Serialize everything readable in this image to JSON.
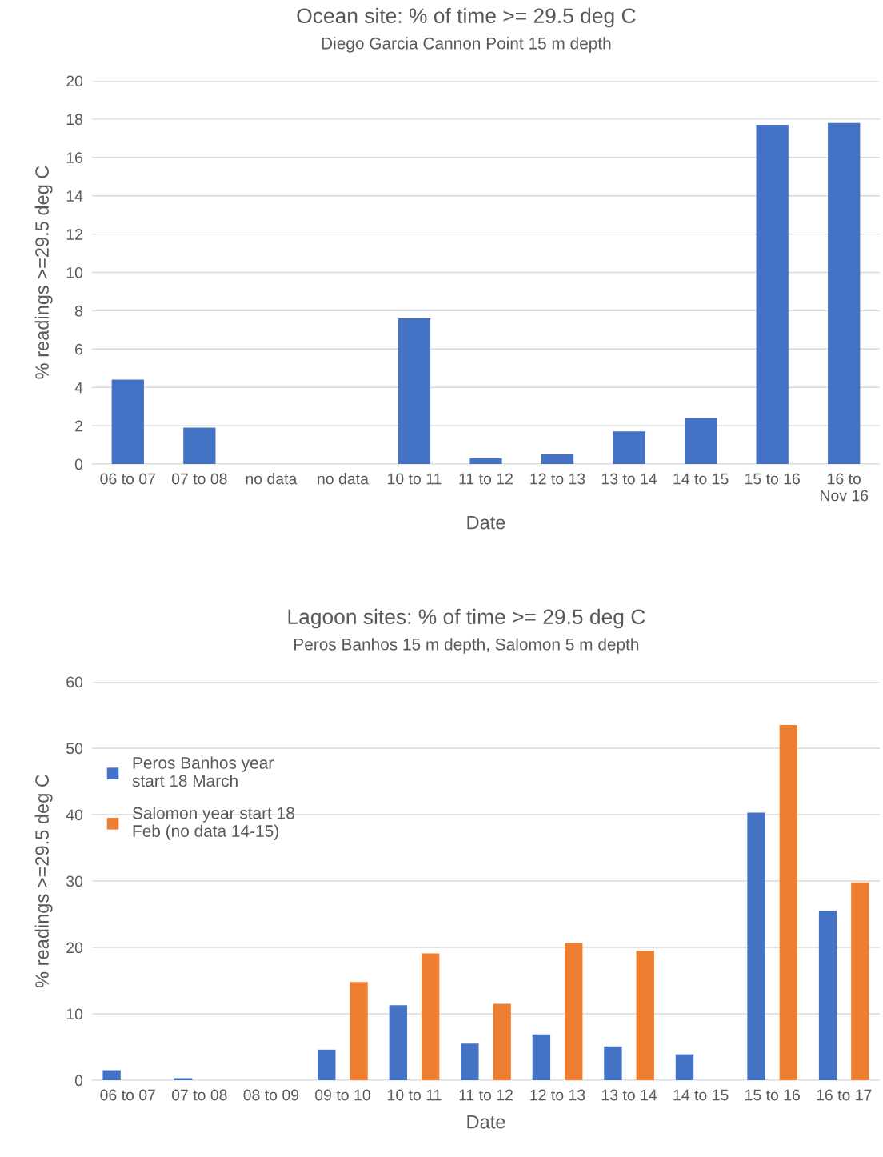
{
  "chart_data": [
    {
      "type": "bar",
      "title": "Ocean site: % of time >= 29.5 deg C",
      "subtitle": "Diego Garcia Cannon Point 15 m depth",
      "xlabel": "Date",
      "ylabel": "% readings >=29.5 deg C",
      "categories": [
        "06 to 07",
        "07 to 08",
        "no data",
        "no data",
        "10 to 11",
        "11 to 12",
        "12 to 13",
        "13 to 14",
        "14 to 15",
        "15 to 16",
        "16 to\nNov 16"
      ],
      "series": [
        {
          "color": "#4472c4",
          "values": [
            4.4,
            1.9,
            null,
            null,
            7.6,
            0.3,
            0.5,
            1.7,
            2.4,
            17.7,
            17.8
          ]
        }
      ],
      "ylim": [
        0,
        20
      ],
      "yticks": [
        0,
        2,
        4,
        6,
        8,
        10,
        12,
        14,
        16,
        18,
        20
      ],
      "grid": "y"
    },
    {
      "type": "bar",
      "title": "Lagoon sites: % of time >= 29.5 deg C",
      "subtitle": "Peros Banhos 15 m depth, Salomon 5 m depth",
      "xlabel": "Date",
      "ylabel": "% readings >=29.5 deg C",
      "categories": [
        "06 to 07",
        "07 to 08",
        "08 to 09",
        "09 to 10",
        "10 to 11",
        "11 to 12",
        "12 to 13",
        "13 to 14",
        "14 to 15",
        "15 to 16",
        "16 to 17"
      ],
      "series": [
        {
          "name": "Peros Banhos year\nstart 18 March",
          "color": "#4472c4",
          "values": [
            1.5,
            0.3,
            null,
            4.6,
            11.3,
            5.5,
            6.9,
            5.1,
            3.9,
            40.3,
            25.5
          ]
        },
        {
          "name": "Salomon year start 18\nFeb (no data 14-15)",
          "color": "#ed7d31",
          "values": [
            null,
            null,
            null,
            14.8,
            19.1,
            11.5,
            20.7,
            19.5,
            null,
            53.5,
            29.8
          ]
        }
      ],
      "ylim": [
        0,
        60
      ],
      "yticks": [
        0,
        10,
        20,
        30,
        40,
        50,
        60
      ],
      "grid": "y",
      "legend": "upper left"
    }
  ]
}
